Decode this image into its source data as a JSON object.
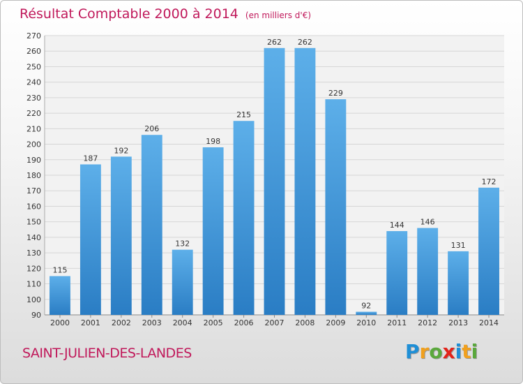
{
  "title": "Résultat Comptable 2000 à 2014",
  "subtitle": "(en milliers d'€)",
  "commune": "SAINT-JULIEN-DES-LANDES",
  "logo": {
    "text": "Proxiti",
    "letters": [
      {
        "char": "P",
        "color": "#1f8fd6"
      },
      {
        "char": "r",
        "color": "#f0a01e"
      },
      {
        "char": "o",
        "color": "#5aa83c"
      },
      {
        "char": "x",
        "color": "#e2231a"
      },
      {
        "char": "i",
        "color": "#1f8fd6"
      },
      {
        "char": "t",
        "color": "#f0a01e"
      },
      {
        "char": "i",
        "color": "#5aa83c"
      }
    ]
  },
  "colors": {
    "title": "#c0185a",
    "bar_top": "#5dafe9",
    "bar_bottom": "#2a7dc4",
    "grid": "#d6d6d6",
    "axis_text": "#333333"
  },
  "chart_data": {
    "type": "bar",
    "categories": [
      "2000",
      "2001",
      "2002",
      "2003",
      "2004",
      "2005",
      "2006",
      "2007",
      "2008",
      "2009",
      "2010",
      "2011",
      "2012",
      "2013",
      "2014"
    ],
    "values": [
      115,
      187,
      192,
      206,
      132,
      198,
      215,
      262,
      262,
      229,
      92,
      144,
      146,
      131,
      172
    ],
    "ylim": [
      90,
      270
    ],
    "yticks": [
      90,
      100,
      110,
      120,
      130,
      140,
      150,
      160,
      170,
      180,
      190,
      200,
      210,
      220,
      230,
      240,
      250,
      260,
      270
    ],
    "grid": true,
    "legend": "none"
  }
}
